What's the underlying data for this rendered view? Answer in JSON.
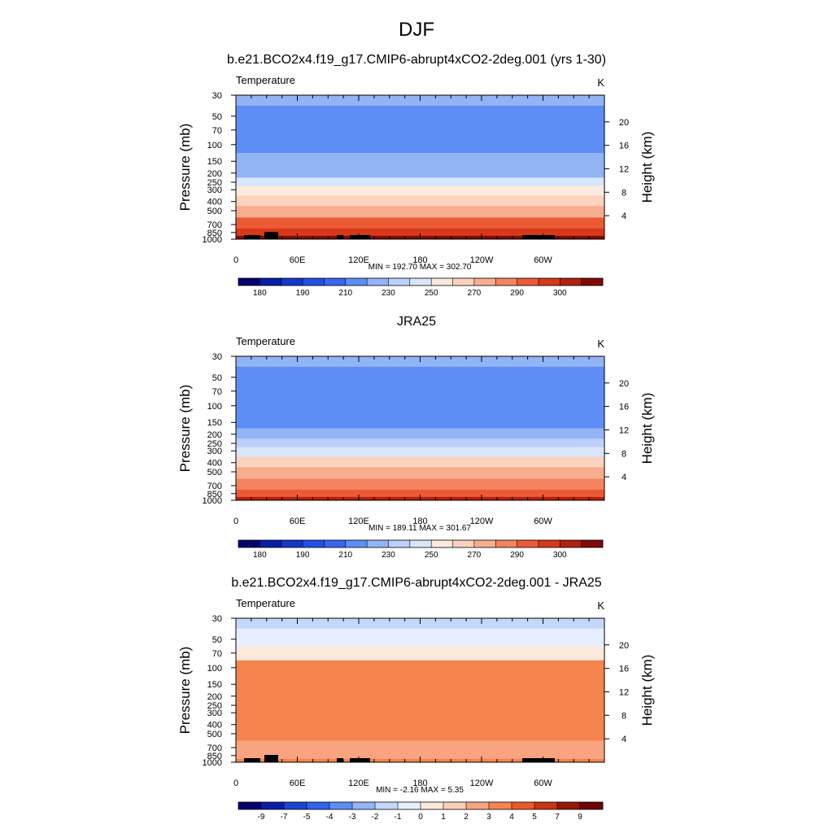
{
  "figure_title": "DJF",
  "colors": {
    "abs_palette": [
      "#05006e",
      "#0a1fa6",
      "#1437cc",
      "#2150e8",
      "#3766f0",
      "#5d8ef5",
      "#92b4f5",
      "#bcd0fa",
      "#d8e6fb",
      "#fbeadd",
      "#fbd2bd",
      "#f8ad8f",
      "#f3845f",
      "#ec5a35",
      "#d63a1a",
      "#b22010",
      "#800a08"
    ],
    "diff_palette": [
      "#05006e",
      "#0a1fa6",
      "#1a44d0",
      "#2f62ee",
      "#5d8ef5",
      "#93b6f6",
      "#c4d8fa",
      "#e6efff",
      "#fbeadc",
      "#fbd0b8",
      "#f8a57f",
      "#f5844f",
      "#e85a2c",
      "#c83414",
      "#951606",
      "#6b0404"
    ],
    "topography": "#000000"
  },
  "chart_data": [
    {
      "type": "contour",
      "title": "b.e21.BCO2x4.f19_g17.CMIP6-abrupt4xCO2-2deg.001 (yrs 1-30)",
      "variable": "Temperature",
      "units": "K",
      "ylabel": "Pressure (mb)",
      "ylabel_right": "Height (km)",
      "x_ticks": [
        "0",
        "60E",
        "120E",
        "180",
        "120W",
        "60W"
      ],
      "y_ticks": [
        "30",
        "50",
        "70",
        "100",
        "150",
        "200",
        "250",
        "300",
        "400",
        "500",
        "700",
        "850",
        "1000"
      ],
      "y_ticks_right": [
        "4",
        "8",
        "12",
        "16",
        "20"
      ],
      "stats": "MIN = 192.70  MAX = 302.70",
      "colorbar_labels": [
        "180",
        "190",
        "210",
        "230",
        "250",
        "270",
        "290",
        "300"
      ],
      "colorbar_levels": [
        175,
        180,
        185,
        190,
        200,
        210,
        220,
        230,
        240,
        250,
        260,
        270,
        280,
        290,
        295,
        300
      ],
      "level_profile": [
        {
          "p": 30,
          "t": 213
        },
        {
          "p": 50,
          "t": 207
        },
        {
          "p": 70,
          "t": 204
        },
        {
          "p": 100,
          "t": 204
        },
        {
          "p": 150,
          "t": 210
        },
        {
          "p": 200,
          "t": 219
        },
        {
          "p": 250,
          "t": 232
        },
        {
          "p": 300,
          "t": 242
        },
        {
          "p": 400,
          "t": 256
        },
        {
          "p": 500,
          "t": 266
        },
        {
          "p": 700,
          "t": 282
        },
        {
          "p": 850,
          "t": 292
        },
        {
          "p": 1000,
          "t": 301
        }
      ],
      "min": 192.7,
      "max": 302.7
    },
    {
      "type": "contour",
      "title": "JRA25",
      "variable": "Temperature",
      "units": "K",
      "ylabel": "Pressure (mb)",
      "ylabel_right": "Height (km)",
      "x_ticks": [
        "0",
        "60E",
        "120E",
        "180",
        "120W",
        "60W"
      ],
      "y_ticks": [
        "30",
        "50",
        "70",
        "100",
        "150",
        "200",
        "250",
        "300",
        "400",
        "500",
        "700",
        "850",
        "1000"
      ],
      "y_ticks_right": [
        "4",
        "8",
        "12",
        "16",
        "20"
      ],
      "stats": "MIN = 189.11  MAX = 301.67",
      "colorbar_labels": [
        "180",
        "190",
        "210",
        "230",
        "250",
        "270",
        "290",
        "300"
      ],
      "colorbar_levels": [
        175,
        180,
        185,
        190,
        200,
        210,
        220,
        230,
        240,
        250,
        260,
        270,
        280,
        290,
        295,
        300
      ],
      "level_profile": [
        {
          "p": 30,
          "t": 214
        },
        {
          "p": 50,
          "t": 208
        },
        {
          "p": 70,
          "t": 204
        },
        {
          "p": 100,
          "t": 202
        },
        {
          "p": 150,
          "t": 208
        },
        {
          "p": 200,
          "t": 216
        },
        {
          "p": 250,
          "t": 226
        },
        {
          "p": 300,
          "t": 236
        },
        {
          "p": 400,
          "t": 250
        },
        {
          "p": 500,
          "t": 260
        },
        {
          "p": 700,
          "t": 276
        },
        {
          "p": 850,
          "t": 286
        },
        {
          "p": 1000,
          "t": 296
        }
      ],
      "min": 189.11,
      "max": 301.67
    },
    {
      "type": "contour",
      "title": "b.e21.BCO2x4.f19_g17.CMIP6-abrupt4xCO2-2deg.001 - JRA25",
      "variable": "Temperature",
      "units": "K",
      "ylabel": "Pressure (mb)",
      "ylabel_right": "Height (km)",
      "x_ticks": [
        "0",
        "60E",
        "120E",
        "180",
        "120W",
        "60W"
      ],
      "y_ticks": [
        "30",
        "50",
        "70",
        "100",
        "150",
        "200",
        "250",
        "300",
        "400",
        "500",
        "700",
        "850",
        "1000"
      ],
      "y_ticks_right": [
        "4",
        "8",
        "12",
        "16",
        "20"
      ],
      "stats": "MIN =  -2.16  MAX =   5.35",
      "colorbar_labels": [
        "-9",
        "-7",
        "-5",
        "-4",
        "-3",
        "-2",
        "-1",
        "0",
        "1",
        "2",
        "3",
        "4",
        "5",
        "7",
        "9"
      ],
      "colorbar_levels": [
        -9,
        -7,
        -5,
        -4,
        -3,
        -2,
        -1,
        0,
        1,
        2,
        3,
        4,
        5,
        7,
        9
      ],
      "level_profile": [
        {
          "p": 30,
          "t": -1.5
        },
        {
          "p": 50,
          "t": -0.5
        },
        {
          "p": 70,
          "t": 0.5
        },
        {
          "p": 100,
          "t": 3.5
        },
        {
          "p": 150,
          "t": 3.6
        },
        {
          "p": 200,
          "t": 3.6
        },
        {
          "p": 250,
          "t": 3.6
        },
        {
          "p": 300,
          "t": 3.6
        },
        {
          "p": 400,
          "t": 3.5
        },
        {
          "p": 500,
          "t": 3.5
        },
        {
          "p": 700,
          "t": 2.5
        },
        {
          "p": 850,
          "t": 2.5
        },
        {
          "p": 1000,
          "t": 3.5
        }
      ],
      "min": -2.16,
      "max": 5.35
    }
  ]
}
